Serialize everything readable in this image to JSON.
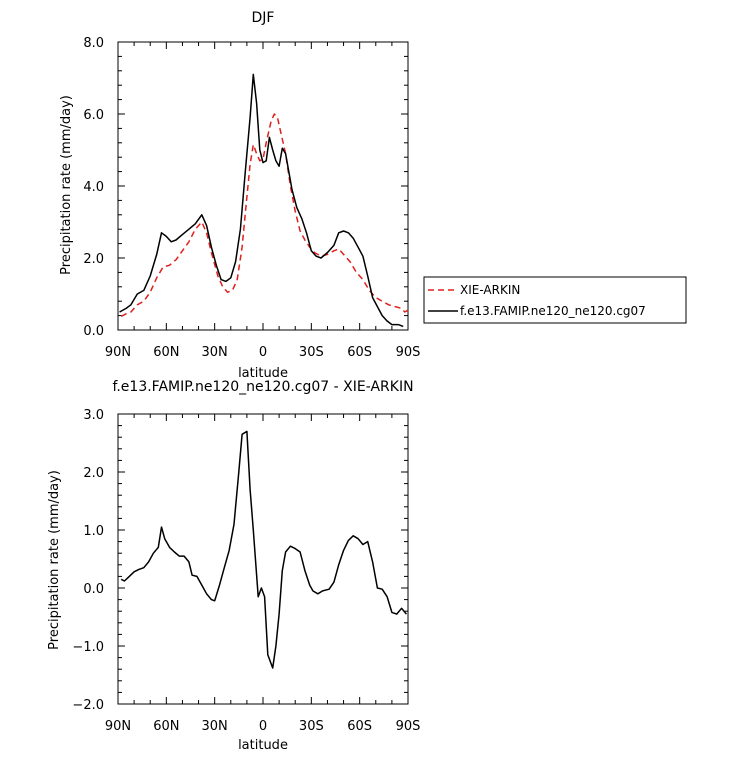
{
  "chart_data": [
    {
      "type": "line",
      "title": "DJF",
      "xlabel": "latitude",
      "ylabel": "Precipitation rate (mm/day)",
      "xlim": [
        90,
        -90
      ],
      "ylim": [
        0,
        8
      ],
      "x_ticks": [
        90,
        60,
        30,
        0,
        -30,
        -60,
        -90
      ],
      "x_tick_labels": [
        "90N",
        "60N",
        "30N",
        "0",
        "30S",
        "60S",
        "90S"
      ],
      "y_ticks": [
        0,
        2,
        4,
        6,
        8
      ],
      "y_tick_labels": [
        "0.0",
        "2.0",
        "4.0",
        "6.0",
        "8.0"
      ],
      "legend": "outside-right",
      "series": [
        {
          "name": "XIE-ARKIN",
          "color": "#e0201c",
          "dash": "dashed",
          "points": [
            [
              88,
              0.38
            ],
            [
              85,
              0.45
            ],
            [
              82,
              0.5
            ],
            [
              78,
              0.7
            ],
            [
              74,
              0.8
            ],
            [
              70,
              1.05
            ],
            [
              66,
              1.45
            ],
            [
              62,
              1.75
            ],
            [
              58,
              1.8
            ],
            [
              54,
              1.95
            ],
            [
              50,
              2.2
            ],
            [
              46,
              2.45
            ],
            [
              42,
              2.8
            ],
            [
              38,
              3.0
            ],
            [
              35,
              2.7
            ],
            [
              32,
              2.15
            ],
            [
              28,
              1.5
            ],
            [
              25,
              1.2
            ],
            [
              22,
              1.05
            ],
            [
              19,
              1.1
            ],
            [
              16,
              1.4
            ],
            [
              13,
              2.3
            ],
            [
              10,
              3.7
            ],
            [
              8,
              4.6
            ],
            [
              6,
              5.15
            ],
            [
              4,
              4.9
            ],
            [
              2,
              4.7
            ],
            [
              0,
              4.75
            ],
            [
              -2,
              5.2
            ],
            [
              -5,
              5.8
            ],
            [
              -7,
              6.0
            ],
            [
              -9,
              5.9
            ],
            [
              -11,
              5.5
            ],
            [
              -14,
              4.9
            ],
            [
              -17,
              4.0
            ],
            [
              -20,
              3.3
            ],
            [
              -23,
              2.75
            ],
            [
              -26,
              2.5
            ],
            [
              -29,
              2.3
            ],
            [
              -32,
              2.15
            ],
            [
              -36,
              2.05
            ],
            [
              -40,
              2.1
            ],
            [
              -44,
              2.2
            ],
            [
              -47,
              2.25
            ],
            [
              -50,
              2.1
            ],
            [
              -54,
              1.9
            ],
            [
              -58,
              1.6
            ],
            [
              -62,
              1.4
            ],
            [
              -66,
              1.1
            ],
            [
              -70,
              0.9
            ],
            [
              -74,
              0.8
            ],
            [
              -78,
              0.7
            ],
            [
              -82,
              0.65
            ],
            [
              -86,
              0.6
            ],
            [
              -88,
              0.5
            ],
            [
              -90,
              0.55
            ]
          ]
        },
        {
          "name": "f.e13.FAMIP.ne120_ne120.cg07",
          "color": "#000000",
          "dash": "solid",
          "points": [
            [
              89,
              0.5
            ],
            [
              85,
              0.6
            ],
            [
              82,
              0.7
            ],
            [
              78,
              1.0
            ],
            [
              74,
              1.1
            ],
            [
              70,
              1.5
            ],
            [
              66,
              2.1
            ],
            [
              63,
              2.7
            ],
            [
              60,
              2.6
            ],
            [
              57,
              2.45
            ],
            [
              54,
              2.5
            ],
            [
              50,
              2.65
            ],
            [
              46,
              2.8
            ],
            [
              42,
              2.95
            ],
            [
              38,
              3.2
            ],
            [
              35,
              2.9
            ],
            [
              32,
              2.3
            ],
            [
              29,
              1.8
            ],
            [
              26,
              1.4
            ],
            [
              23,
              1.35
            ],
            [
              20,
              1.45
            ],
            [
              17,
              1.9
            ],
            [
              14,
              2.8
            ],
            [
              11,
              4.4
            ],
            [
              8,
              5.9
            ],
            [
              6,
              7.1
            ],
            [
              4,
              6.3
            ],
            [
              2,
              5.0
            ],
            [
              0,
              4.65
            ],
            [
              -2,
              4.7
            ],
            [
              -4,
              5.35
            ],
            [
              -6,
              5.0
            ],
            [
              -8,
              4.7
            ],
            [
              -10,
              4.55
            ],
            [
              -12,
              5.05
            ],
            [
              -14,
              4.9
            ],
            [
              -16,
              4.4
            ],
            [
              -18,
              3.9
            ],
            [
              -21,
              3.4
            ],
            [
              -24,
              3.1
            ],
            [
              -27,
              2.7
            ],
            [
              -30,
              2.2
            ],
            [
              -33,
              2.05
            ],
            [
              -36,
              2.0
            ],
            [
              -40,
              2.15
            ],
            [
              -44,
              2.35
            ],
            [
              -47,
              2.7
            ],
            [
              -50,
              2.75
            ],
            [
              -53,
              2.7
            ],
            [
              -56,
              2.55
            ],
            [
              -59,
              2.3
            ],
            [
              -62,
              2.05
            ],
            [
              -65,
              1.5
            ],
            [
              -68,
              0.9
            ],
            [
              -71,
              0.65
            ],
            [
              -74,
              0.4
            ],
            [
              -77,
              0.25
            ],
            [
              -80,
              0.15
            ],
            [
              -84,
              0.15
            ],
            [
              -87,
              0.1
            ]
          ]
        }
      ]
    },
    {
      "type": "line",
      "title": "f.e13.FAMIP.ne120_ne120.cg07 - XIE-ARKIN",
      "xlabel": "latitude",
      "ylabel": "Precipitation rate (mm/day)",
      "xlim": [
        90,
        -90
      ],
      "ylim": [
        -2,
        3
      ],
      "x_ticks": [
        90,
        60,
        30,
        0,
        -30,
        -60,
        -90
      ],
      "x_tick_labels": [
        "90N",
        "60N",
        "30N",
        "0",
        "30S",
        "60S",
        "90S"
      ],
      "y_ticks": [
        -2,
        -1,
        0,
        1,
        2,
        3
      ],
      "y_tick_labels": [
        "−2.0",
        "−1.0",
        "0.0",
        "1.0",
        "2.0",
        "3.0"
      ],
      "series": [
        {
          "name": "",
          "color": "#000000",
          "dash": "solid",
          "points": [
            [
              88,
              0.15
            ],
            [
              86,
              0.12
            ],
            [
              83,
              0.2
            ],
            [
              80,
              0.28
            ],
            [
              77,
              0.32
            ],
            [
              74,
              0.35
            ],
            [
              71,
              0.45
            ],
            [
              68,
              0.6
            ],
            [
              65,
              0.7
            ],
            [
              63,
              1.05
            ],
            [
              61,
              0.85
            ],
            [
              58,
              0.7
            ],
            [
              55,
              0.62
            ],
            [
              52,
              0.55
            ],
            [
              49,
              0.55
            ],
            [
              46,
              0.45
            ],
            [
              44,
              0.22
            ],
            [
              41,
              0.2
            ],
            [
              38,
              0.05
            ],
            [
              35,
              -0.1
            ],
            [
              32,
              -0.2
            ],
            [
              30,
              -0.22
            ],
            [
              27,
              0.05
            ],
            [
              24,
              0.35
            ],
            [
              21,
              0.65
            ],
            [
              18,
              1.1
            ],
            [
              15,
              2.0
            ],
            [
              13,
              2.65
            ],
            [
              10,
              2.7
            ],
            [
              8,
              1.7
            ],
            [
              6,
              1.0
            ],
            [
              3,
              -0.15
            ],
            [
              1,
              0.0
            ],
            [
              -1,
              -0.15
            ],
            [
              -3,
              -1.15
            ],
            [
              -6,
              -1.38
            ],
            [
              -8,
              -1.0
            ],
            [
              -10,
              -0.45
            ],
            [
              -12,
              0.3
            ],
            [
              -14,
              0.62
            ],
            [
              -17,
              0.72
            ],
            [
              -20,
              0.68
            ],
            [
              -23,
              0.62
            ],
            [
              -26,
              0.3
            ],
            [
              -29,
              0.05
            ],
            [
              -31,
              -0.05
            ],
            [
              -34,
              -0.1
            ],
            [
              -37,
              -0.05
            ],
            [
              -41,
              -0.02
            ],
            [
              -44,
              0.1
            ],
            [
              -47,
              0.4
            ],
            [
              -50,
              0.65
            ],
            [
              -53,
              0.82
            ],
            [
              -56,
              0.9
            ],
            [
              -59,
              0.85
            ],
            [
              -62,
              0.75
            ],
            [
              -65,
              0.8
            ],
            [
              -68,
              0.45
            ],
            [
              -71,
              0.0
            ],
            [
              -74,
              -0.02
            ],
            [
              -77,
              -0.15
            ],
            [
              -80,
              -0.42
            ],
            [
              -83,
              -0.45
            ],
            [
              -86,
              -0.35
            ],
            [
              -89,
              -0.45
            ]
          ]
        }
      ]
    }
  ]
}
